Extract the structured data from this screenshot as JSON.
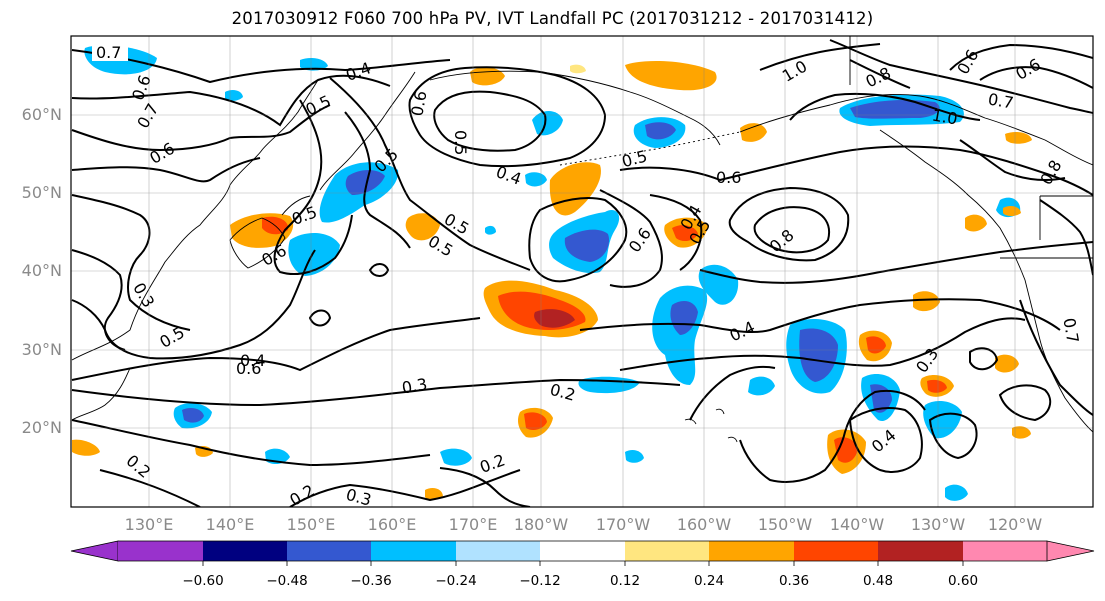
{
  "title": "2017030912 F060 700 hPa PV, IVT Landfall PC (2017031212 - 2017031412)",
  "latitude_labels": [
    "60°N",
    "50°N",
    "40°N",
    "30°N",
    "20°N"
  ],
  "longitude_labels": [
    "130°E",
    "140°E",
    "150°E",
    "160°E",
    "170°E",
    "180°W",
    "170°W",
    "160°W",
    "150°W",
    "140°W",
    "130°W",
    "120°W"
  ],
  "colorbar": {
    "tick_labels": [
      "−0.60",
      "−0.48",
      "−0.36",
      "−0.24",
      "−0.12",
      "0.12",
      "0.24",
      "0.36",
      "0.48",
      "0.60"
    ],
    "colors": [
      "#9932cc",
      "#000080",
      "#3458d0",
      "#00bfff",
      "#b0e2ff",
      "#ffffff",
      "#ffe680",
      "#ffa500",
      "#ff4500",
      "#b22222",
      "#ff88b0"
    ]
  },
  "contour_labels": [
    "0.7",
    "0.6",
    "0.7",
    "0.6",
    "0.5",
    "0.4",
    "0.6",
    "0.5",
    "0.5",
    "0.6",
    "0.5",
    "0.5",
    "0.4",
    "0.5",
    "0.6",
    "0.6",
    "1.0",
    "0.8",
    "1.0",
    "0.6",
    "0.7",
    "0.8",
    "0.4",
    "0.5",
    "0.8",
    "0.6",
    "0.4",
    "0.4",
    "0.3",
    "0.5",
    "0.3",
    "0.2",
    "0.3",
    "0.2",
    "0.2",
    "0.2",
    "0.3",
    "0.4",
    "0.7",
    "0.6",
    "0.5"
  ]
}
